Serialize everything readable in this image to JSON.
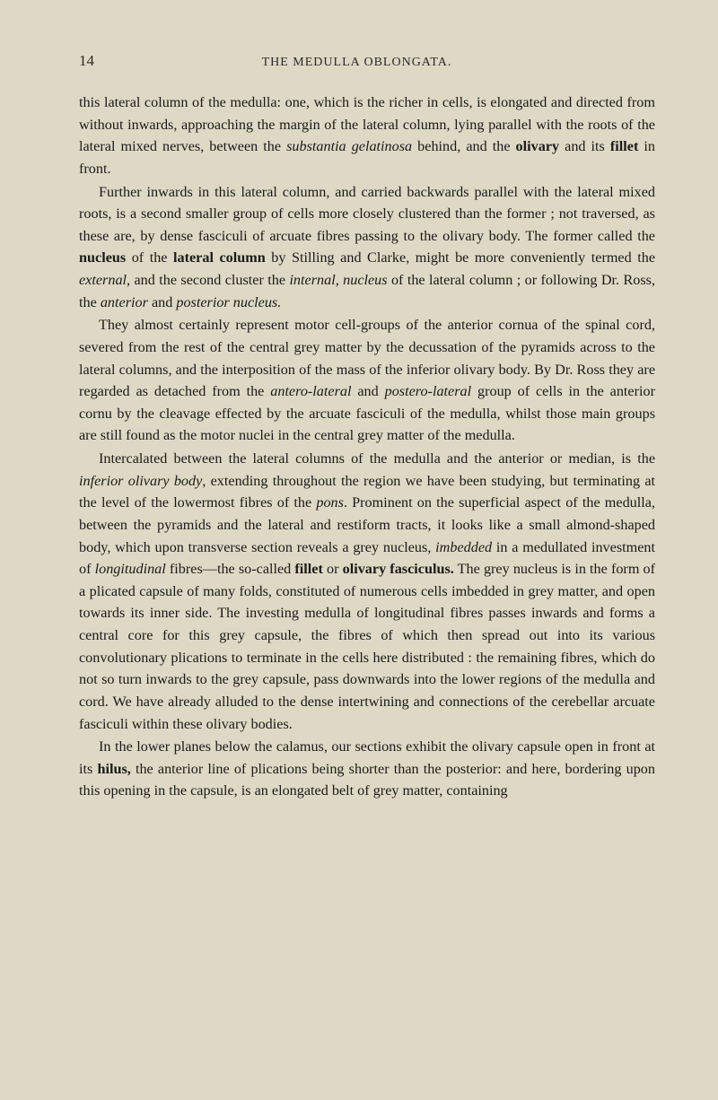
{
  "page_number": "14",
  "chapter_title": "THE MEDULLA OBLONGATA.",
  "paragraphs": {
    "p1_a": "this lateral column of the medulla: one, which is the richer in cells, is elongated and directed from without inwards, approaching the margin of the lateral column, lying parallel with the roots of the lateral mixed nerves, between the ",
    "p1_italic1": "substantia gelatinosa",
    "p1_b": " behind, and the ",
    "p1_bold1": "olivary",
    "p1_c": " and its ",
    "p1_bold2": "fillet",
    "p1_d": " in front.",
    "p2_a": "Further inwards in this lateral column, and carried backwards parallel with the lateral mixed roots, is a second smaller group of cells more closely clustered than the former ; not traversed, as these are, by dense fasciculi of arcuate fibres passing to the olivary body. The former called the ",
    "p2_bold1": "nucleus",
    "p2_b": " of the ",
    "p2_bold2": "lateral column",
    "p2_c": " by Stilling and Clarke, might be more conveniently termed the ",
    "p2_italic1": "external",
    "p2_d": ", and the second cluster the ",
    "p2_italic2": "internal, nucleus",
    "p2_e": " of the lateral column ; or following Dr. Ross, the ",
    "p2_italic3": "anterior",
    "p2_f": " and ",
    "p2_italic4": "posterior nucleus.",
    "p3_a": "They almost certainly represent motor cell-groups of the anterior cornua of the spinal cord, severed from the rest of the central grey matter by the decussation of the pyramids across to the lateral columns, and the interposition of the mass of the inferior olivary body. By Dr. Ross they are regarded as detached from the ",
    "p3_italic1": "antero-lateral",
    "p3_b": " and ",
    "p3_italic2": "postero-lateral",
    "p3_c": " group of cells in the anterior cornu by the cleavage effected by the arcuate fasciculi of the medulla, whilst those main groups are still found as the motor nuclei in the central grey matter of the medulla.",
    "p4_a": "Intercalated between the lateral columns of the medulla and the anterior or median, is the ",
    "p4_italic1": "inferior olivary body",
    "p4_b": ", extending throughout the region we have been studying, but terminating at the level of the lowermost fibres of the ",
    "p4_italic2": "pons",
    "p4_c": ". Prominent on the superficial aspect of the medulla, between the pyramids and the lateral and restiform tracts, it looks like a small almond-shaped body, which upon transverse section reveals a grey nucleus, ",
    "p4_italic3": "imbedded",
    "p4_d": " in a medullated investment of ",
    "p4_italic4": "longitudinal",
    "p4_e": " fibres—the so-called ",
    "p4_bold1": "fillet",
    "p4_f": " or ",
    "p4_bold2": "olivary fasciculus.",
    "p4_g": " The grey nucleus is in the form of a plicated capsule of many folds, constituted of numerous cells imbedded in grey matter, and open towards its inner side. The investing medulla of longitudinal fibres passes inwards and forms a central core for this grey capsule, the fibres of which then spread out into its various convolutionary plications to terminate in the cells here distributed : the remaining fibres, which do not so turn inwards to the grey capsule, pass downwards into the lower regions of the medulla and cord. We have already alluded to the dense intertwining and connections of the cerebellar arcuate fasciculi within these olivary bodies.",
    "p5_a": "In the lower planes below the calamus, our sections exhibit the olivary capsule open in front at its ",
    "p5_bold1": "hilus,",
    "p5_b": " the anterior line of plications being shorter than the posterior: and here, bordering upon this opening in the capsule, is an elongated belt of grey matter, containing"
  },
  "colors": {
    "page_bg": "#ddd9c4",
    "text_color": "#1a1a1a",
    "header_color": "#2a2a2a"
  }
}
